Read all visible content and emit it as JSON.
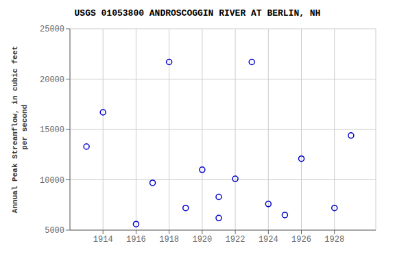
{
  "chart_data": {
    "type": "scatter",
    "title": "USGS 01053800 ANDROSCOGGIN RIVER AT BERLIN, NH",
    "ylabel": "Annual Peak Streamflow, in cubic feet\n per second",
    "x": [
      1913,
      1914,
      1916,
      1917,
      1918,
      1919,
      1920,
      1921,
      1921,
      1922,
      1923,
      1924,
      1925,
      1926,
      1928,
      1929
    ],
    "values": [
      13300,
      16700,
      5600,
      9700,
      21700,
      7200,
      11000,
      6200,
      8300,
      10100,
      21700,
      7600,
      6500,
      12100,
      7200,
      14400
    ],
    "color": "#0000cc",
    "marker": "circle",
    "xlim": [
      1912.0,
      1930.5
    ],
    "ylim": [
      5000,
      25000
    ],
    "xticks": [
      1914,
      1916,
      1918,
      1920,
      1922,
      1924,
      1926,
      1928
    ],
    "yticks": [
      5000,
      10000,
      15000,
      20000,
      25000
    ],
    "grid": true
  }
}
